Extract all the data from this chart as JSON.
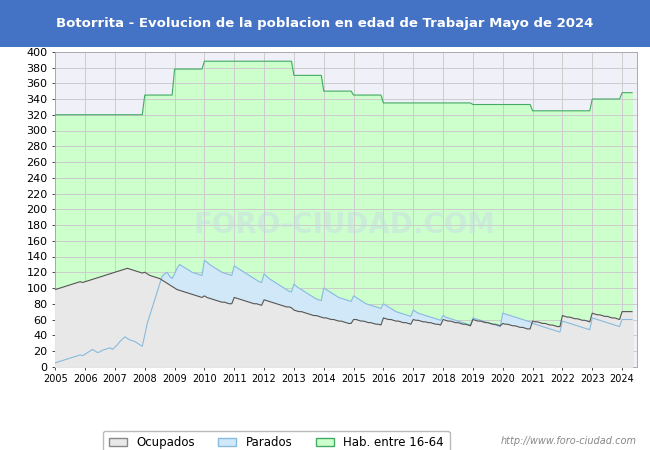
{
  "title": "Botorrita - Evolucion de la poblacion en edad de Trabajar Mayo de 2024",
  "title_bg": "#4472c4",
  "title_color": "#ffffff",
  "ylim": [
    0,
    400
  ],
  "ytick_step": 20,
  "footer_text": "http://www.foro-ciudad.com",
  "legend_labels": [
    "Ocupados",
    "Parados",
    "Hab. entre 16-64"
  ],
  "hab_color": "#ccffcc",
  "hab_line_color": "#44aa66",
  "parados_color": "#d0e8f8",
  "parados_line_color": "#88bbdd",
  "ocupados_color": "#e8e8e8",
  "ocupados_line_color": "#555555",
  "grid_color": "#cccccc",
  "plot_bg": "#f0f0f8",
  "watermark": "FORO-CIUDAD.COM",
  "hab_16_64": [
    320,
    320,
    320,
    320,
    320,
    320,
    320,
    320,
    320,
    320,
    320,
    320,
    320,
    320,
    320,
    320,
    320,
    320,
    320,
    320,
    320,
    320,
    320,
    320,
    320,
    320,
    320,
    320,
    320,
    320,
    320,
    320,
    320,
    320,
    320,
    320,
    345,
    345,
    345,
    345,
    345,
    345,
    345,
    345,
    345,
    345,
    345,
    345,
    378,
    378,
    378,
    378,
    378,
    378,
    378,
    378,
    378,
    378,
    378,
    378,
    388,
    388,
    388,
    388,
    388,
    388,
    388,
    388,
    388,
    388,
    388,
    388,
    388,
    388,
    388,
    388,
    388,
    388,
    388,
    388,
    388,
    388,
    388,
    388,
    388,
    388,
    388,
    388,
    388,
    388,
    388,
    388,
    388,
    388,
    388,
    388,
    370,
    370,
    370,
    370,
    370,
    370,
    370,
    370,
    370,
    370,
    370,
    370,
    350,
    350,
    350,
    350,
    350,
    350,
    350,
    350,
    350,
    350,
    350,
    350,
    345,
    345,
    345,
    345,
    345,
    345,
    345,
    345,
    345,
    345,
    345,
    345,
    335,
    335,
    335,
    335,
    335,
    335,
    335,
    335,
    335,
    335,
    335,
    335,
    335,
    335,
    335,
    335,
    335,
    335,
    335,
    335,
    335,
    335,
    335,
    335,
    335,
    335,
    335,
    335,
    335,
    335,
    335,
    335,
    335,
    335,
    335,
    335,
    333,
    333,
    333,
    333,
    333,
    333,
    333,
    333,
    333,
    333,
    333,
    333,
    333,
    333,
    333,
    333,
    333,
    333,
    333,
    333,
    333,
    333,
    333,
    333,
    325,
    325,
    325,
    325,
    325,
    325,
    325,
    325,
    325,
    325,
    325,
    325,
    325,
    325,
    325,
    325,
    325,
    325,
    325,
    325,
    325,
    325,
    325,
    325,
    340,
    340,
    340,
    340,
    340,
    340,
    340,
    340,
    340,
    340,
    340,
    340,
    348,
    348,
    348,
    348,
    348
  ],
  "parados": [
    5,
    6,
    7,
    8,
    9,
    10,
    11,
    12,
    13,
    14,
    15,
    14,
    16,
    18,
    20,
    22,
    20,
    18,
    19,
    21,
    22,
    23,
    24,
    22,
    25,
    28,
    32,
    35,
    38,
    36,
    34,
    33,
    32,
    30,
    28,
    26,
    40,
    55,
    65,
    75,
    85,
    95,
    105,
    115,
    118,
    120,
    115,
    112,
    118,
    125,
    130,
    128,
    126,
    124,
    122,
    120,
    119,
    118,
    117,
    116,
    135,
    133,
    130,
    128,
    126,
    124,
    122,
    120,
    119,
    118,
    117,
    116,
    128,
    126,
    124,
    122,
    120,
    118,
    116,
    114,
    112,
    110,
    108,
    107,
    118,
    115,
    112,
    110,
    108,
    106,
    104,
    102,
    100,
    98,
    96,
    95,
    105,
    102,
    100,
    98,
    96,
    94,
    92,
    90,
    88,
    86,
    85,
    84,
    100,
    98,
    96,
    94,
    92,
    90,
    88,
    87,
    86,
    85,
    84,
    83,
    90,
    88,
    86,
    84,
    82,
    80,
    79,
    78,
    77,
    76,
    75,
    74,
    80,
    78,
    76,
    74,
    72,
    70,
    69,
    68,
    67,
    66,
    65,
    64,
    72,
    70,
    68,
    67,
    66,
    65,
    64,
    63,
    62,
    61,
    60,
    59,
    65,
    63,
    62,
    61,
    60,
    59,
    58,
    57,
    56,
    55,
    54,
    53,
    62,
    61,
    60,
    59,
    58,
    57,
    56,
    55,
    54,
    53,
    52,
    51,
    68,
    67,
    66,
    65,
    64,
    63,
    62,
    61,
    60,
    59,
    58,
    57,
    55,
    54,
    53,
    52,
    51,
    50,
    49,
    48,
    47,
    46,
    45,
    44,
    58,
    57,
    56,
    55,
    54,
    53,
    52,
    51,
    50,
    49,
    48,
    47,
    62,
    61,
    60,
    59,
    58,
    57,
    56,
    55,
    54,
    53,
    52,
    51,
    60,
    60,
    60,
    60,
    60
  ],
  "ocupados": [
    98,
    99,
    100,
    101,
    102,
    103,
    104,
    105,
    106,
    107,
    108,
    107,
    108,
    109,
    110,
    111,
    112,
    113,
    114,
    115,
    116,
    117,
    118,
    119,
    120,
    121,
    122,
    123,
    124,
    125,
    124,
    123,
    122,
    121,
    120,
    119,
    120,
    118,
    116,
    115,
    114,
    113,
    112,
    110,
    108,
    106,
    104,
    102,
    100,
    98,
    97,
    96,
    95,
    94,
    93,
    92,
    91,
    90,
    89,
    88,
    90,
    88,
    87,
    86,
    85,
    84,
    83,
    82,
    82,
    81,
    80,
    80,
    88,
    87,
    86,
    85,
    84,
    83,
    82,
    81,
    80,
    80,
    79,
    78,
    85,
    84,
    83,
    82,
    81,
    80,
    79,
    78,
    77,
    76,
    76,
    75,
    72,
    71,
    70,
    70,
    69,
    68,
    67,
    66,
    65,
    65,
    64,
    63,
    62,
    62,
    61,
    60,
    60,
    59,
    58,
    58,
    57,
    56,
    55,
    55,
    60,
    60,
    59,
    58,
    58,
    57,
    56,
    56,
    55,
    54,
    54,
    53,
    62,
    61,
    60,
    60,
    59,
    58,
    58,
    57,
    56,
    56,
    55,
    54,
    60,
    59,
    59,
    58,
    57,
    57,
    56,
    56,
    55,
    54,
    54,
    53,
    60,
    59,
    58,
    58,
    57,
    56,
    56,
    55,
    54,
    54,
    53,
    52,
    60,
    59,
    58,
    58,
    57,
    56,
    56,
    55,
    54,
    54,
    53,
    52,
    55,
    54,
    54,
    53,
    52,
    52,
    51,
    50,
    50,
    49,
    48,
    48,
    58,
    57,
    57,
    56,
    55,
    55,
    54,
    53,
    53,
    52,
    51,
    51,
    65,
    64,
    63,
    63,
    62,
    61,
    61,
    60,
    59,
    59,
    58,
    57,
    68,
    67,
    66,
    66,
    65,
    64,
    64,
    63,
    62,
    62,
    61,
    60,
    70,
    70,
    70,
    70,
    70
  ]
}
